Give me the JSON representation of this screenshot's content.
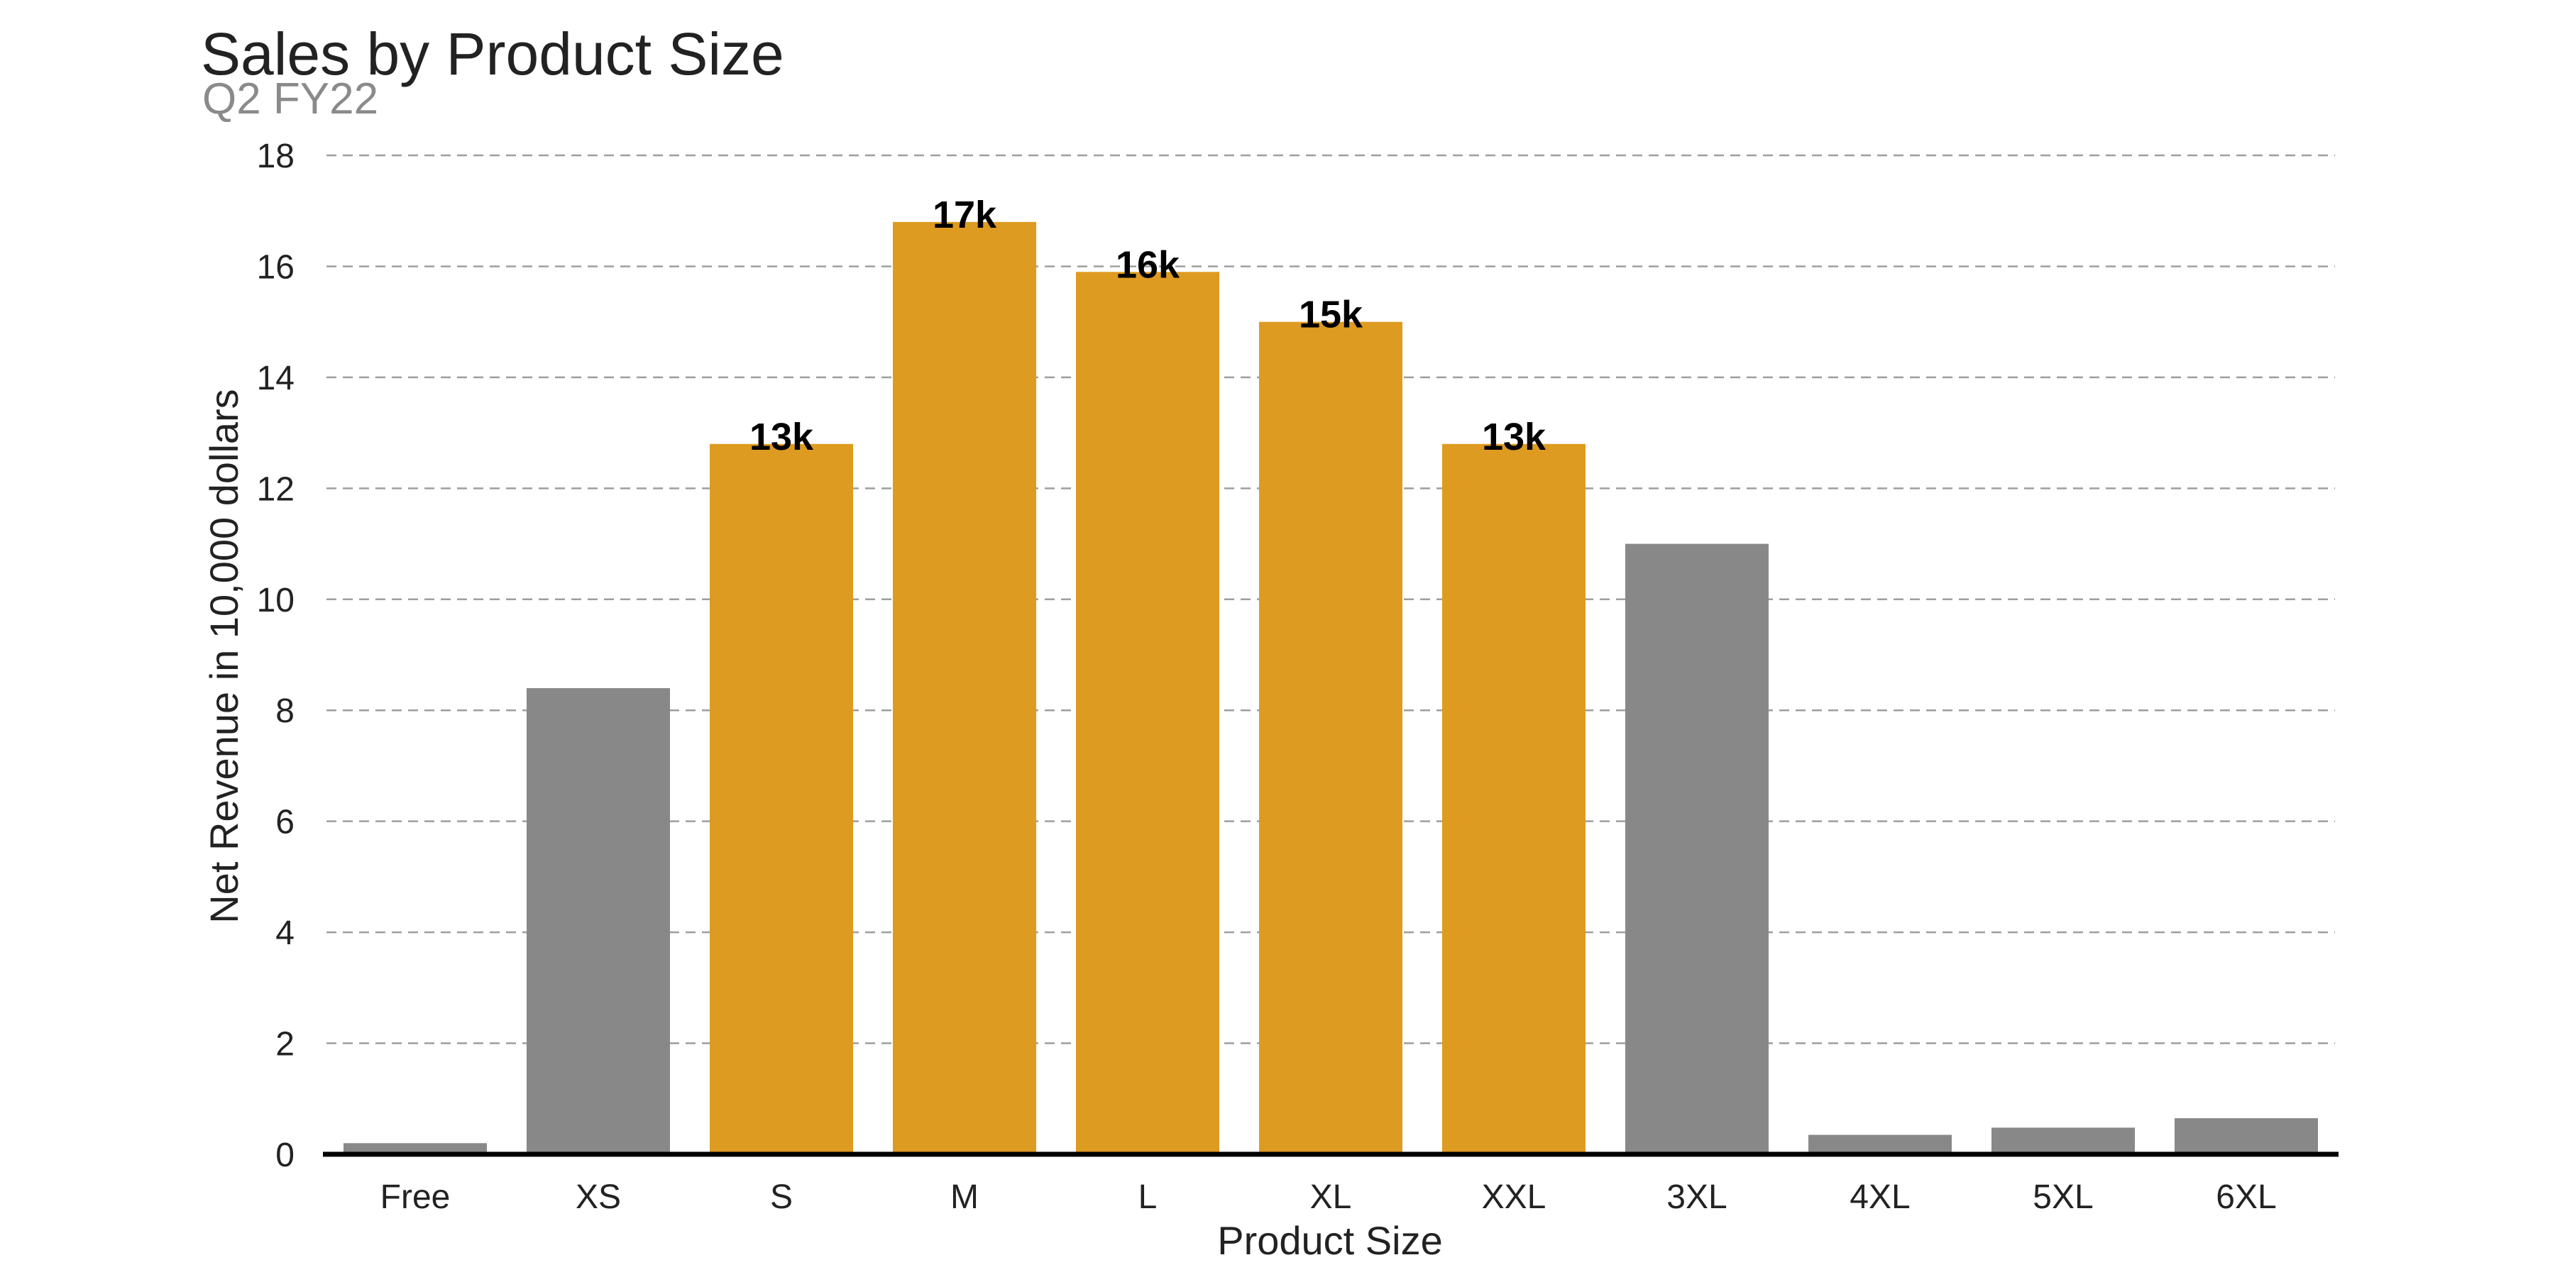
{
  "chart_data": {
    "type": "bar",
    "title": "Sales by Product Size",
    "subtitle": "Q2 FY22",
    "xlabel": "Product Size",
    "ylabel": "Net Revenue in 10,000 dollars",
    "ylim": [
      0,
      18
    ],
    "yticks": [
      0,
      2,
      4,
      6,
      8,
      10,
      12,
      14,
      16,
      18
    ],
    "grid": "horizontal-dashed",
    "categories": [
      "Free",
      "XS",
      "S",
      "M",
      "L",
      "XL",
      "XXL",
      "3XL",
      "4XL",
      "5XL",
      "6XL"
    ],
    "values": [
      0.2,
      8.4,
      12.8,
      16.8,
      15.9,
      15.0,
      12.8,
      11.0,
      0.35,
      0.48,
      0.65
    ],
    "highlighted": [
      false,
      false,
      true,
      true,
      true,
      true,
      true,
      false,
      false,
      false,
      false
    ],
    "data_labels": [
      "",
      "",
      "13k",
      "17k",
      "16k",
      "15k",
      "13k",
      "",
      "",
      "",
      ""
    ],
    "colors": {
      "highlight": "#DE9B21",
      "base": "#888888",
      "grid": "#9e9e9e",
      "axis": "#000000"
    }
  }
}
